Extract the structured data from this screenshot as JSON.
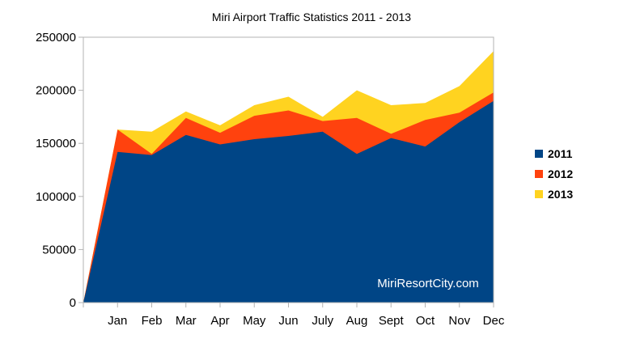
{
  "chart_data": {
    "type": "area",
    "stacked": true,
    "title": "Miri Airport Traffic Statistics 2011 - 2013",
    "xlabel": "",
    "ylabel": "",
    "categories": [
      "",
      "Jan",
      "Feb",
      "Mar",
      "Apr",
      "May",
      "Jun",
      "July",
      "Aug",
      "Sept",
      "Oct",
      "Nov",
      "Dec"
    ],
    "ylim": [
      0,
      250000
    ],
    "yticks": [
      0,
      50000,
      100000,
      150000,
      200000,
      250000
    ],
    "ytick_labels": [
      "0",
      "50000",
      "100000",
      "150000",
      "200000",
      "250000"
    ],
    "grid": false,
    "legend_position": "right",
    "series": [
      {
        "name": "2011",
        "color": "#004586",
        "values": [
          0,
          142000,
          139000,
          158000,
          149000,
          154000,
          157000,
          161000,
          140000,
          155000,
          147000,
          170000,
          190000
        ]
      },
      {
        "name": "2012",
        "color": "#ff420e",
        "values": [
          0,
          21000,
          1000,
          16000,
          11000,
          22000,
          24000,
          10000,
          34000,
          4000,
          25000,
          9000,
          8000
        ]
      },
      {
        "name": "2013",
        "color": "#ffd320",
        "values": [
          0,
          0,
          21000,
          6000,
          7000,
          10000,
          13000,
          4000,
          26000,
          27000,
          16000,
          25000,
          39000
        ]
      }
    ],
    "watermark": "MiriResortCity.com"
  }
}
